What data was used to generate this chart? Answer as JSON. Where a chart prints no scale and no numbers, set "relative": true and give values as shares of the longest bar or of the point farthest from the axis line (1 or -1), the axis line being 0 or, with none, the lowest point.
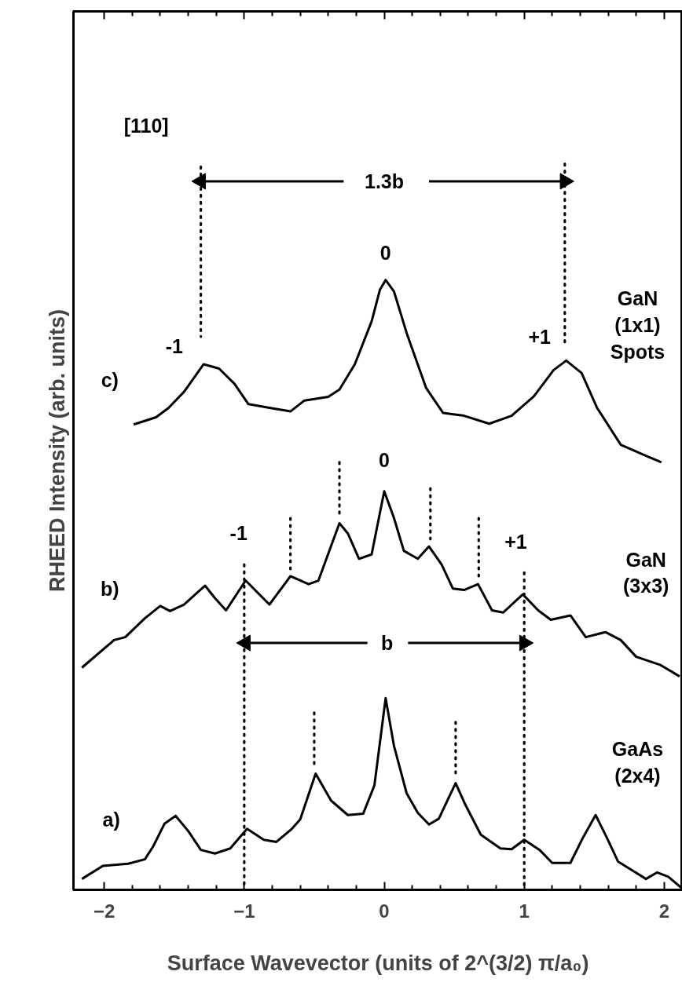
{
  "chart_data": {
    "type": "line",
    "relative": true,
    "xlabel": "Surface Wavevector (units of 2^(3/2) π/a₀)",
    "ylabel": "RHEED Intensity (arb. units)",
    "xlim": [
      -2.22,
      2.13
    ],
    "xticks": [
      -2,
      {
        "value": -1.8,
        "label": null
      },
      {
        "value": -1.6,
        "label": null
      },
      {
        "value": -1.4,
        "label": null
      },
      {
        "value": -1.2,
        "label": null
      },
      -1,
      {
        "value": -0.8,
        "label": null
      },
      {
        "value": -0.6,
        "label": null
      },
      {
        "value": -0.4,
        "label": null
      },
      {
        "value": -0.2,
        "label": null
      },
      0,
      {
        "value": 0.2,
        "label": null
      },
      {
        "value": 0.4,
        "label": null
      },
      {
        "value": 0.6,
        "label": null
      },
      {
        "value": 0.8,
        "label": null
      },
      1,
      {
        "value": 1.2,
        "label": null
      },
      {
        "value": 1.4,
        "label": null
      },
      {
        "value": 1.6,
        "label": null
      },
      {
        "value": 1.8,
        "label": null
      },
      2
    ],
    "grid": false,
    "series": [
      {
        "color": "#000000",
        "x": [
          -1.79,
          -1.63,
          -1.54,
          -1.43,
          -1.29,
          -1.18,
          -1.07,
          -0.97,
          -0.82,
          -0.67,
          -0.57,
          -0.4,
          -0.32,
          -0.21,
          -0.09,
          -0.03,
          0.01,
          0.07,
          0.16,
          0.3,
          0.42,
          0.57,
          0.75,
          0.91,
          1.07,
          1.21,
          1.3,
          1.41,
          1.52,
          1.69,
          1.88,
          1.98
        ],
        "values": [
          0.641,
          0.651,
          0.664,
          0.686,
          0.724,
          0.718,
          0.697,
          0.669,
          0.664,
          0.659,
          0.674,
          0.679,
          0.689,
          0.724,
          0.783,
          0.827,
          0.84,
          0.824,
          0.767,
          0.691,
          0.657,
          0.653,
          0.642,
          0.653,
          0.68,
          0.716,
          0.729,
          0.712,
          0.664,
          0.613,
          0.597,
          0.589
        ]
      },
      {
        "color": "#000000",
        "x": [
          -2.16,
          -1.93,
          -1.85,
          -1.71,
          -1.6,
          -1.53,
          -1.43,
          -1.28,
          -1.21,
          -1.13,
          -0.99,
          -0.82,
          -0.67,
          -0.54,
          -0.47,
          -0.32,
          -0.26,
          -0.18,
          -0.09,
          0.0,
          0.07,
          0.14,
          0.24,
          0.32,
          0.41,
          0.49,
          0.57,
          0.67,
          0.77,
          0.85,
          0.99,
          1.1,
          1.19,
          1.33,
          1.44,
          1.58,
          1.69,
          1.8,
          1.97,
          2.11
        ],
        "values": [
          0.306,
          0.344,
          0.348,
          0.374,
          0.391,
          0.384,
          0.393,
          0.419,
          0.402,
          0.385,
          0.426,
          0.393,
          0.432,
          0.421,
          0.426,
          0.505,
          0.491,
          0.456,
          0.462,
          0.549,
          0.512,
          0.467,
          0.456,
          0.473,
          0.448,
          0.415,
          0.413,
          0.421,
          0.385,
          0.382,
          0.407,
          0.385,
          0.372,
          0.378,
          0.348,
          0.355,
          0.344,
          0.321,
          0.31,
          0.294
        ]
      },
      {
        "color": "#000000",
        "x": [
          -2.16,
          -2.01,
          -1.83,
          -1.71,
          -1.65,
          -1.57,
          -1.49,
          -1.4,
          -1.31,
          -1.21,
          -1.1,
          -0.98,
          -0.86,
          -0.77,
          -0.66,
          -0.6,
          -0.49,
          -0.38,
          -0.26,
          -0.15,
          -0.07,
          0.01,
          0.07,
          0.16,
          0.24,
          0.32,
          0.39,
          0.51,
          0.58,
          0.69,
          0.83,
          0.91,
          1.0,
          1.11,
          1.2,
          1.33,
          1.42,
          1.51,
          1.59,
          1.67,
          1.77,
          1.87,
          1.95,
          2.03,
          2.12
        ],
        "values": [
          0.015,
          0.033,
          0.036,
          0.042,
          0.06,
          0.091,
          0.102,
          0.081,
          0.055,
          0.05,
          0.057,
          0.084,
          0.069,
          0.066,
          0.084,
          0.097,
          0.16,
          0.123,
          0.103,
          0.105,
          0.144,
          0.264,
          0.198,
          0.133,
          0.106,
          0.09,
          0.098,
          0.147,
          0.117,
          0.076,
          0.057,
          0.056,
          0.069,
          0.055,
          0.037,
          0.037,
          0.072,
          0.103,
          0.072,
          0.039,
          0.027,
          0.015,
          0.024,
          0.018,
          0.003
        ]
      },
      {
        "color": "#000000",
        "line_style": "dotted",
        "x": [
          -1.31,
          -1.31
        ],
        "values": [
          0.996,
          0.762
        ]
      },
      {
        "color": "#000000",
        "line_style": "dotted",
        "x": [
          1.29,
          1.29
        ],
        "values": [
          1.0,
          0.749
        ]
      },
      {
        "color": "#000000",
        "line_style": "dotted",
        "x": [
          -1.0,
          -1.0
        ],
        "values": [
          0.448,
          0.0
        ]
      },
      {
        "color": "#000000",
        "line_style": "dotted",
        "x": [
          1.0,
          1.0
        ],
        "values": [
          0.437,
          0.0
        ]
      },
      {
        "color": "#000000",
        "line_style": "dotted",
        "x": [
          -0.67,
          -0.67
        ],
        "values": [
          0.512,
          0.437
        ]
      },
      {
        "color": "#000000",
        "line_style": "dotted",
        "x": [
          -0.32,
          -0.32
        ],
        "values": [
          0.589,
          0.518
        ]
      },
      {
        "color": "#000000",
        "line_style": "dotted",
        "x": [
          0.33,
          0.33
        ],
        "values": [
          0.553,
          0.483
        ]
      },
      {
        "color": "#000000",
        "line_style": "dotted",
        "x": [
          0.675,
          0.675
        ],
        "values": [
          0.512,
          0.426
        ]
      },
      {
        "color": "#000000",
        "line_style": "dotted",
        "x": [
          -0.5,
          -0.5
        ],
        "values": [
          0.244,
          0.171
        ]
      },
      {
        "color": "#000000",
        "line_style": "dotted",
        "x": [
          0.51,
          0.51
        ],
        "values": [
          0.231,
          0.16
        ]
      },
      {
        "color": "#000000",
        "marker": "triangle",
        "x": [
          -0.29,
          -1.31
        ],
        "values": [
          0.976,
          0.976
        ]
      },
      {
        "color": "#000000",
        "marker": "triangle",
        "x": [
          0.32,
          1.29
        ],
        "values": [
          0.976,
          0.976
        ]
      },
      {
        "color": "#000000",
        "marker": "triangle",
        "x": [
          -0.12,
          -0.99
        ],
        "values": [
          0.34,
          0.34
        ]
      },
      {
        "color": "#000000",
        "marker": "triangle",
        "x": [
          0.17,
          1.0
        ],
        "values": [
          0.34,
          0.34
        ]
      }
    ],
    "annotations": [
      "[110]",
      "1.3b",
      {
        "text": "0",
        "x": 0.01,
        "y": 0.878
      },
      {
        "text": "-1",
        "x": -1.5,
        "y": 0.749
      },
      {
        "text": "+1",
        "x": 1.11,
        "y": 0.762
      },
      {
        "text": "c)",
        "x": -1.96,
        "y": 0.702
      },
      "GaN\n(1x1)\nSpots",
      {
        "text": "0",
        "x": 0.0,
        "y": 0.592
      },
      {
        "text": "-1",
        "x": -1.04,
        "y": 0.491
      },
      {
        "text": "+1",
        "x": 0.94,
        "y": 0.48
      },
      {
        "text": "b)",
        "x": -1.96,
        "y": 0.415
      },
      "GaN\n(3x3)",
      {
        "text": "b",
        "x": 0.02,
        "y": 0.34
      },
      "GaAs\n(2x4)",
      {
        "text": "a)",
        "x": -1.95,
        "y": 0.097
      }
    ]
  }
}
